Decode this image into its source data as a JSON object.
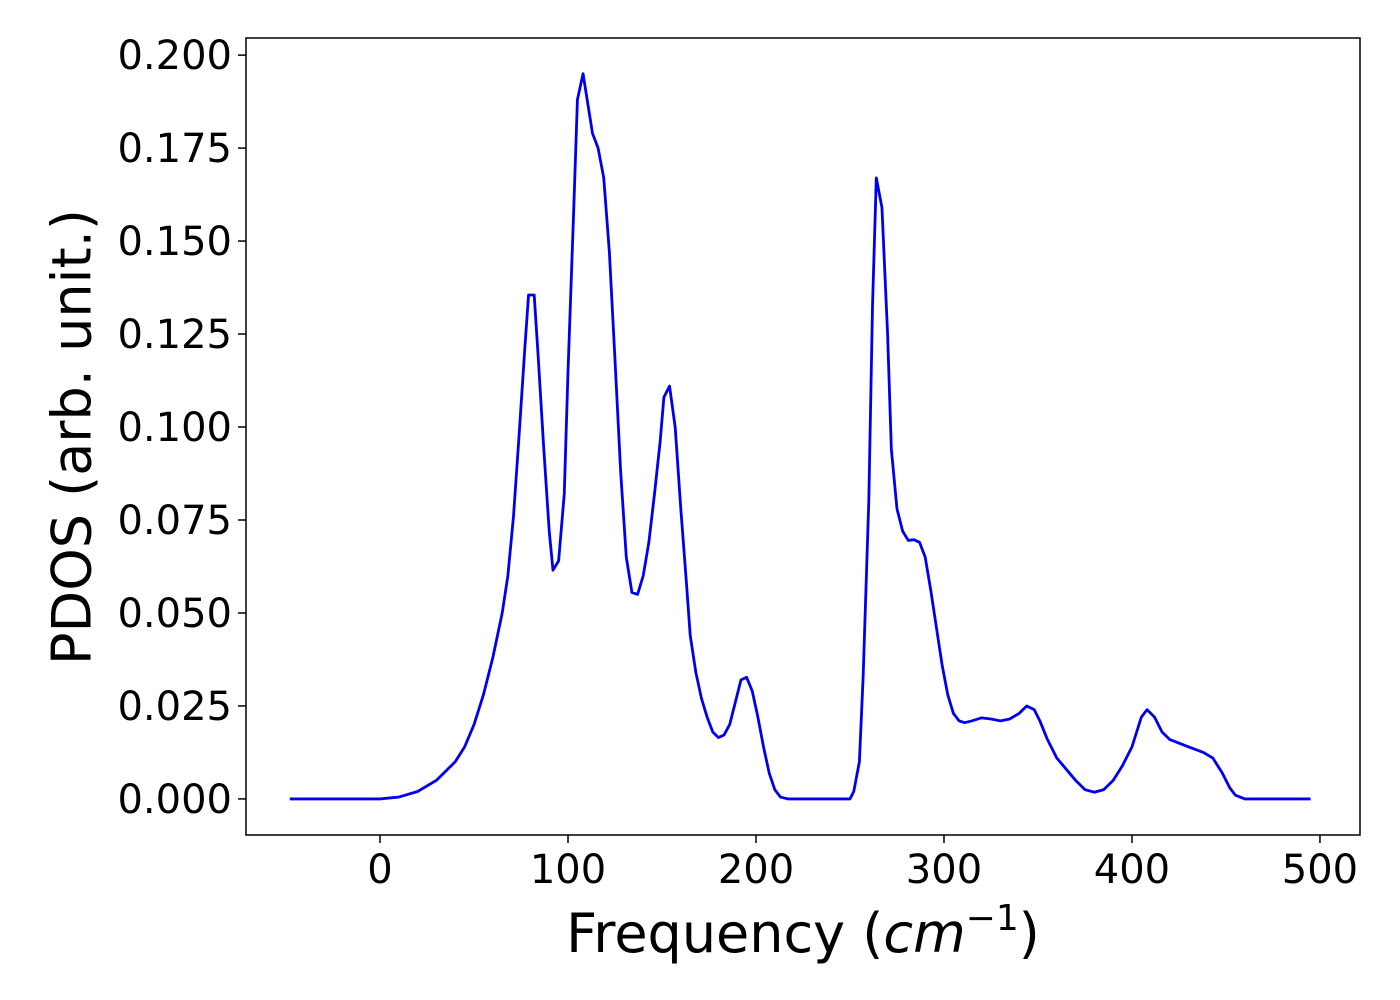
{
  "chart_data": {
    "type": "line",
    "xlabel_parts": [
      "Frequency (",
      "cm",
      "−1",
      ")"
    ],
    "ylabel": "PDOS (arb. unit.)",
    "x": [
      -48,
      0,
      10,
      20,
      30,
      40,
      45,
      50,
      55,
      60,
      65,
      68,
      71,
      74,
      77,
      79,
      82,
      84,
      87,
      90,
      92,
      95,
      98,
      100,
      103,
      105,
      108,
      113,
      116,
      119,
      122,
      125,
      128,
      131,
      134,
      137,
      140,
      143,
      146,
      149,
      151,
      154,
      157,
      160,
      163,
      165,
      168,
      171,
      174,
      177,
      180,
      183,
      186,
      189,
      192,
      195,
      198,
      201,
      204,
      207,
      210,
      213,
      217,
      250,
      252,
      255,
      257,
      260,
      262,
      264,
      267,
      270,
      272,
      275,
      278,
      281,
      284,
      287,
      290,
      293,
      296,
      299,
      302,
      305,
      308,
      311,
      315,
      320,
      325,
      330,
      335,
      340,
      344,
      348,
      351,
      355,
      360,
      365,
      370,
      375,
      380,
      385,
      390,
      395,
      400,
      405,
      408,
      412,
      416,
      420,
      430,
      438,
      443,
      448,
      452,
      455,
      460,
      495
    ],
    "series": [
      {
        "name": "PDOS",
        "color": "#0000ee",
        "values": [
          0,
          0,
          0.0005,
          0.002,
          0.005,
          0.01,
          0.014,
          0.02,
          0.028,
          0.038,
          0.05,
          0.06,
          0.076,
          0.098,
          0.121,
          0.1355,
          0.1355,
          0.12,
          0.095,
          0.072,
          0.0615,
          0.064,
          0.082,
          0.115,
          0.158,
          0.188,
          0.195,
          0.179,
          0.175,
          0.167,
          0.147,
          0.118,
          0.088,
          0.065,
          0.0555,
          0.055,
          0.06,
          0.069,
          0.082,
          0.096,
          0.108,
          0.111,
          0.1,
          0.078,
          0.058,
          0.044,
          0.034,
          0.027,
          0.022,
          0.018,
          0.0165,
          0.0172,
          0.02,
          0.026,
          0.032,
          0.0327,
          0.029,
          0.022,
          0.014,
          0.007,
          0.0025,
          0.0005,
          0,
          0,
          0.002,
          0.01,
          0.033,
          0.08,
          0.133,
          0.167,
          0.159,
          0.125,
          0.094,
          0.078,
          0.072,
          0.0695,
          0.0697,
          0.069,
          0.065,
          0.056,
          0.046,
          0.036,
          0.028,
          0.023,
          0.021,
          0.0205,
          0.021,
          0.0218,
          0.0215,
          0.021,
          0.0215,
          0.023,
          0.025,
          0.024,
          0.021,
          0.016,
          0.011,
          0.008,
          0.005,
          0.0025,
          0.0018,
          0.0025,
          0.005,
          0.009,
          0.014,
          0.022,
          0.024,
          0.022,
          0.018,
          0.016,
          0.014,
          0.0125,
          0.011,
          0.007,
          0.003,
          0.001,
          0,
          0
        ]
      }
    ],
    "xlim": [
      -71.3,
      521.3
    ],
    "ylim": [
      -0.0097,
      0.2046
    ],
    "xticks": [
      0,
      100,
      200,
      300,
      400,
      500
    ],
    "yticks": [
      {
        "value": 0,
        "label": "0.000"
      },
      {
        "value": 0.025,
        "label": "0.025"
      },
      {
        "value": 0.05,
        "label": "0.050"
      },
      {
        "value": 0.075,
        "label": "0.075"
      },
      {
        "value": 0.1,
        "label": "0.100"
      },
      {
        "value": 0.125,
        "label": "0.125"
      },
      {
        "value": 0.15,
        "label": "0.150"
      },
      {
        "value": 0.175,
        "label": "0.175"
      },
      {
        "value": 0.2,
        "label": "0.200"
      }
    ],
    "grid": false
  }
}
